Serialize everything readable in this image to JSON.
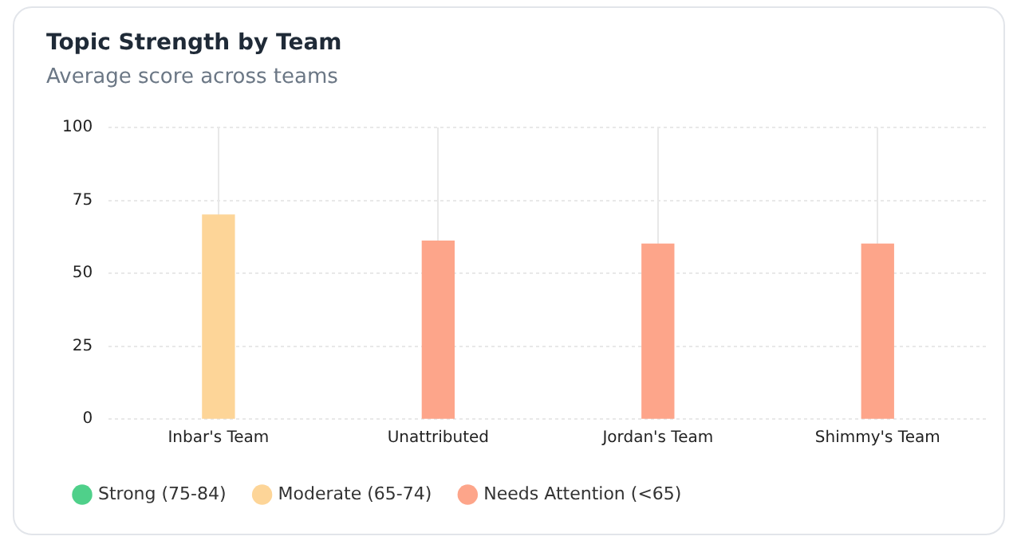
{
  "chart_data": {
    "type": "bar",
    "title": "Topic Strength by Team",
    "subtitle": "Average score across teams",
    "categories": [
      "Inbar's Team",
      "Unattributed",
      "Jordan's Team",
      "Shimmy's Team"
    ],
    "series": [
      {
        "name": "Strong (75-84)",
        "color": "#4fd08a",
        "values": [
          null,
          null,
          null,
          null
        ]
      },
      {
        "name": "Moderate (65-74)",
        "color": "#fdd598",
        "values": [
          70,
          null,
          null,
          null
        ]
      },
      {
        "name": "Needs Attention (<65)",
        "color": "#fda58a",
        "values": [
          null,
          61,
          60,
          60
        ]
      }
    ],
    "ylim": [
      0,
      100
    ],
    "yticks": [
      0,
      25,
      50,
      75,
      100
    ],
    "grid": true,
    "legend": "bottom left"
  }
}
